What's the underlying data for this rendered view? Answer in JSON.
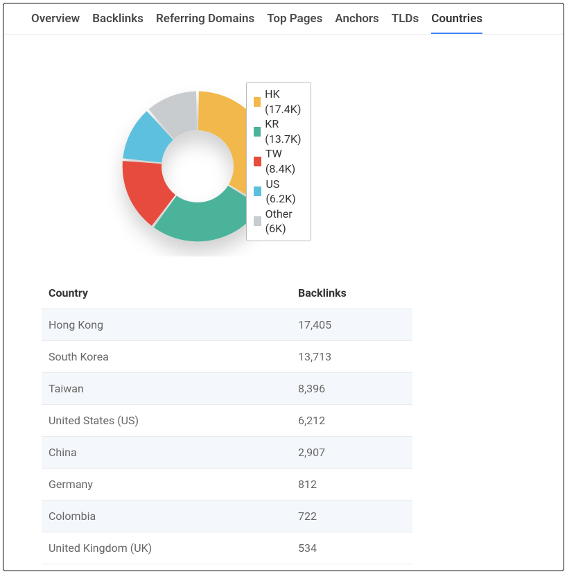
{
  "tabs": [
    {
      "label": "Overview",
      "active": false
    },
    {
      "label": "Backlinks",
      "active": false
    },
    {
      "label": "Referring Domains",
      "active": false
    },
    {
      "label": "Top Pages",
      "active": false
    },
    {
      "label": "Anchors",
      "active": false
    },
    {
      "label": "TLDs",
      "active": false
    },
    {
      "label": "Countries",
      "active": true
    }
  ],
  "chart": {
    "type": "donut",
    "inner_radius_pct": 48,
    "outer_radius_pct": 100,
    "gap_deg": 2,
    "start_angle_deg": -90,
    "drop_shadow": true,
    "legend": {
      "position": "overlay-top-right",
      "items": [
        {
          "label": "HK (17.4K)",
          "color": "#f2b84b"
        },
        {
          "label": "KR (13.7K)",
          "color": "#4bb39a"
        },
        {
          "label": "TW (8.4K)",
          "color": "#e74c3c"
        },
        {
          "label": "US (6.2K)",
          "color": "#5bc0de"
        },
        {
          "label": "Other (6K)",
          "color": "#c9cccf"
        }
      ]
    },
    "slices": [
      {
        "name": "HK",
        "value": 17405,
        "color": "#f2b84b"
      },
      {
        "name": "KR",
        "value": 13713,
        "color": "#4bb39a"
      },
      {
        "name": "TW",
        "value": 8396,
        "color": "#e74c3c"
      },
      {
        "name": "US",
        "value": 6212,
        "color": "#5bc0de"
      },
      {
        "name": "Other",
        "value": 5975,
        "color": "#c9cccf"
      }
    ]
  },
  "table": {
    "columns": [
      "Country",
      "Backlinks"
    ],
    "rows": [
      [
        "Hong Kong",
        "17,405"
      ],
      [
        "South Korea",
        "13,713"
      ],
      [
        "Taiwan",
        "8,396"
      ],
      [
        "United States (US)",
        "6,212"
      ],
      [
        "China",
        "2,907"
      ],
      [
        "Germany",
        "812"
      ],
      [
        "Colombia",
        "722"
      ],
      [
        "United Kingdom (UK)",
        "534"
      ]
    ],
    "stripe_color": "#f4f7fb"
  }
}
